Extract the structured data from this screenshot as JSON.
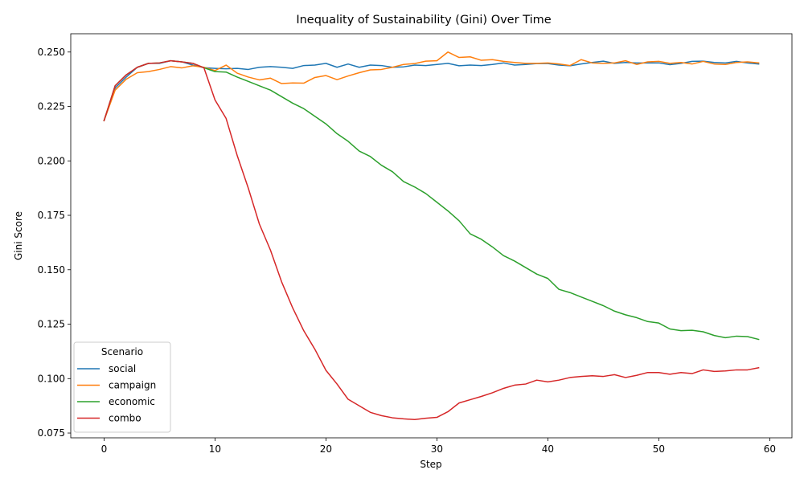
{
  "chart_data": {
    "type": "line",
    "title": "Inequality of Sustainability (Gini) Over Time",
    "xlabel": "Step",
    "ylabel": "Gini Score",
    "xlim": [
      -3,
      62
    ],
    "ylim": [
      0.0728,
      0.2584
    ],
    "xticks": [
      0,
      10,
      20,
      30,
      40,
      50,
      60
    ],
    "xtick_labels": [
      "0",
      "10",
      "20",
      "30",
      "40",
      "50",
      "60"
    ],
    "yticks": [
      0.075,
      0.1,
      0.125,
      0.15,
      0.175,
      0.2,
      0.225,
      0.25
    ],
    "ytick_labels": [
      "0.075",
      "0.100",
      "0.125",
      "0.150",
      "0.175",
      "0.200",
      "0.225",
      "0.250"
    ],
    "grid": false,
    "legend": {
      "title": "Scenario",
      "placement": "lower-left"
    },
    "x": [
      0,
      1,
      2,
      3,
      4,
      5,
      6,
      7,
      8,
      9,
      10,
      11,
      12,
      13,
      14,
      15,
      16,
      17,
      18,
      19,
      20,
      21,
      22,
      23,
      24,
      25,
      26,
      27,
      28,
      29,
      30,
      31,
      32,
      33,
      34,
      35,
      36,
      37,
      38,
      39,
      40,
      41,
      42,
      43,
      44,
      45,
      46,
      47,
      48,
      49,
      50,
      51,
      52,
      53,
      54,
      55,
      56,
      57,
      58,
      59
    ],
    "series": [
      {
        "name": "social",
        "color": "#1f77b4",
        "values": [
          0.2185,
          0.2335,
          0.2385,
          0.243,
          0.2448,
          0.2448,
          0.246,
          0.2455,
          0.244,
          0.2428,
          0.2425,
          0.2423,
          0.2425,
          0.242,
          0.243,
          0.2433,
          0.243,
          0.2425,
          0.2438,
          0.244,
          0.2448,
          0.243,
          0.2445,
          0.243,
          0.244,
          0.2438,
          0.243,
          0.2432,
          0.244,
          0.2438,
          0.2443,
          0.2448,
          0.2437,
          0.244,
          0.2438,
          0.2443,
          0.245,
          0.244,
          0.2443,
          0.2447,
          0.2447,
          0.244,
          0.2437,
          0.2445,
          0.2452,
          0.2458,
          0.2448,
          0.2452,
          0.245,
          0.245,
          0.245,
          0.2442,
          0.2448,
          0.2457,
          0.2458,
          0.2452,
          0.245,
          0.2457,
          0.245,
          0.2445
        ]
      },
      {
        "name": "campaign",
        "color": "#ff7f0e",
        "values": [
          0.2185,
          0.2325,
          0.2375,
          0.2405,
          0.241,
          0.242,
          0.2433,
          0.2427,
          0.2437,
          0.243,
          0.2415,
          0.244,
          0.2403,
          0.2385,
          0.2372,
          0.238,
          0.2355,
          0.2358,
          0.2357,
          0.2383,
          0.2392,
          0.2373,
          0.239,
          0.2405,
          0.2418,
          0.242,
          0.243,
          0.2443,
          0.2447,
          0.2458,
          0.246,
          0.25,
          0.2475,
          0.2478,
          0.2462,
          0.2465,
          0.2457,
          0.2452,
          0.2448,
          0.2448,
          0.245,
          0.2445,
          0.2438,
          0.2465,
          0.245,
          0.2448,
          0.245,
          0.246,
          0.2443,
          0.2455,
          0.2457,
          0.2448,
          0.2452,
          0.2445,
          0.2457,
          0.2445,
          0.2443,
          0.2452,
          0.2455,
          0.245
        ]
      },
      {
        "name": "economic",
        "color": "#2ca02c",
        "values": [
          0.2185,
          0.2345,
          0.2395,
          0.243,
          0.2448,
          0.245,
          0.246,
          0.2455,
          0.2448,
          0.2428,
          0.241,
          0.2408,
          0.2385,
          0.2365,
          0.2345,
          0.2325,
          0.2295,
          0.2265,
          0.224,
          0.2205,
          0.217,
          0.2125,
          0.209,
          0.2045,
          0.202,
          0.198,
          0.195,
          0.1905,
          0.188,
          0.185,
          0.181,
          0.177,
          0.1725,
          0.1665,
          0.164,
          0.1605,
          0.1565,
          0.154,
          0.151,
          0.148,
          0.146,
          0.141,
          0.1395,
          0.1375,
          0.1355,
          0.1335,
          0.131,
          0.1293,
          0.128,
          0.1262,
          0.1255,
          0.1228,
          0.122,
          0.1222,
          0.1215,
          0.1198,
          0.1188,
          0.1195,
          0.1193,
          0.118
        ]
      },
      {
        "name": "combo",
        "color": "#d62728",
        "values": [
          0.2185,
          0.2345,
          0.2395,
          0.243,
          0.2448,
          0.245,
          0.246,
          0.2455,
          0.2448,
          0.2428,
          0.228,
          0.2195,
          0.2025,
          0.1875,
          0.171,
          0.159,
          0.1445,
          0.1325,
          0.122,
          0.1135,
          0.1038,
          0.0975,
          0.0905,
          0.0875,
          0.0845,
          0.083,
          0.082,
          0.0815,
          0.0812,
          0.0818,
          0.0822,
          0.0848,
          0.0888,
          0.0903,
          0.0918,
          0.0935,
          0.0955,
          0.097,
          0.0975,
          0.0993,
          0.0985,
          0.0993,
          0.1005,
          0.101,
          0.1013,
          0.101,
          0.1018,
          0.1005,
          0.1015,
          0.1028,
          0.1028,
          0.102,
          0.1028,
          0.1023,
          0.104,
          0.1033,
          0.1035,
          0.104,
          0.104,
          0.105
        ]
      }
    ]
  }
}
